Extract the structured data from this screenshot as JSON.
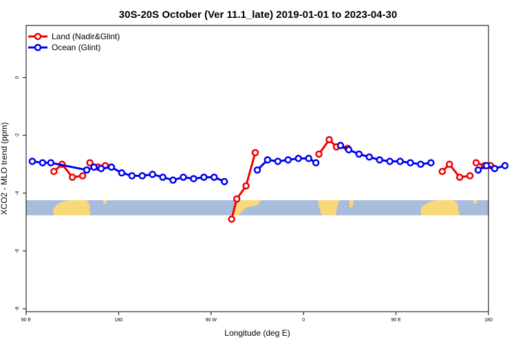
{
  "chart_data": {
    "type": "line",
    "title": "30S-20S October (Ver 11.1_late)   2019-01-01 to 2023-04-30",
    "xlabel": "Longitude (deg E)",
    "ylabel": "XCO2 - MLO trend (ppm)",
    "xlim": [
      90,
      540
    ],
    "ylim": [
      -8.1,
      1.8
    ],
    "x_ticks": [
      {
        "value": 90,
        "label": "90 E"
      },
      {
        "value": 180,
        "label": "180"
      },
      {
        "value": 270,
        "label": "90 W"
      },
      {
        "value": 360,
        "label": "0"
      },
      {
        "value": 450,
        "label": "90 E"
      },
      {
        "value": 540,
        "label": "180"
      }
    ],
    "y_ticks": [
      {
        "value": 0,
        "label": "0"
      },
      {
        "value": -2,
        "label": "-2"
      },
      {
        "value": -4,
        "label": "-4"
      },
      {
        "value": -6,
        "label": "-6"
      },
      {
        "value": -8,
        "label": "-8"
      }
    ],
    "legend_position": "top-left",
    "grid": false,
    "series": [
      {
        "name": "Land (Nadir&Glint)",
        "color": "#ee0000",
        "segments": [
          [
            [
              117,
              -3.25
            ],
            [
              125,
              -3.0
            ],
            [
              135,
              -3.45
            ],
            [
              145,
              -3.4
            ]
          ],
          [
            [
              152,
              -2.95
            ],
            [
              160,
              -3.1
            ],
            [
              167,
              -3.05
            ]
          ],
          [
            [
              290,
              -4.9
            ],
            [
              295,
              -4.2
            ],
            [
              304,
              -3.75
            ],
            [
              313,
              -2.6
            ]
          ],
          [
            [
              375,
              -2.65
            ],
            [
              385,
              -2.15
            ],
            [
              392,
              -2.4
            ],
            [
              403,
              -2.45
            ]
          ],
          [
            [
              495,
              -3.25
            ],
            [
              502,
              -3.0
            ],
            [
              512,
              -3.45
            ],
            [
              522,
              -3.4
            ]
          ],
          [
            [
              528,
              -2.95
            ],
            [
              536,
              -3.05
            ],
            [
              542,
              -3.05
            ]
          ]
        ]
      },
      {
        "name": "Ocean (Glint)",
        "color": "#0000ee",
        "segments": [
          [
            [
              96,
              -2.9
            ],
            [
              106,
              -2.95
            ],
            [
              114,
              -2.95
            ],
            [
              149,
              -3.2
            ],
            [
              156,
              -3.1
            ],
            [
              163,
              -3.15
            ],
            [
              173,
              -3.1
            ],
            [
              183,
              -3.3
            ],
            [
              193,
              -3.4
            ],
            [
              203,
              -3.4
            ],
            [
              213,
              -3.35
            ],
            [
              223,
              -3.45
            ],
            [
              233,
              -3.55
            ],
            [
              243,
              -3.45
            ],
            [
              253,
              -3.5
            ],
            [
              263,
              -3.45
            ],
            [
              273,
              -3.45
            ],
            [
              283,
              -3.6
            ]
          ],
          [
            [
              315,
              -3.2
            ],
            [
              325,
              -2.85
            ],
            [
              335,
              -2.9
            ],
            [
              345,
              -2.85
            ],
            [
              355,
              -2.8
            ],
            [
              365,
              -2.8
            ],
            [
              372,
              -2.95
            ]
          ],
          [
            [
              396,
              -2.35
            ],
            [
              404,
              -2.5
            ],
            [
              414,
              -2.65
            ],
            [
              424,
              -2.75
            ],
            [
              434,
              -2.85
            ],
            [
              444,
              -2.9
            ],
            [
              454,
              -2.9
            ],
            [
              464,
              -2.95
            ],
            [
              474,
              -3.0
            ],
            [
              484,
              -2.95
            ]
          ],
          [
            [
              530,
              -3.2
            ],
            [
              538,
              -3.05
            ],
            [
              546,
              -3.15
            ],
            [
              556,
              -3.05
            ]
          ]
        ]
      }
    ]
  }
}
